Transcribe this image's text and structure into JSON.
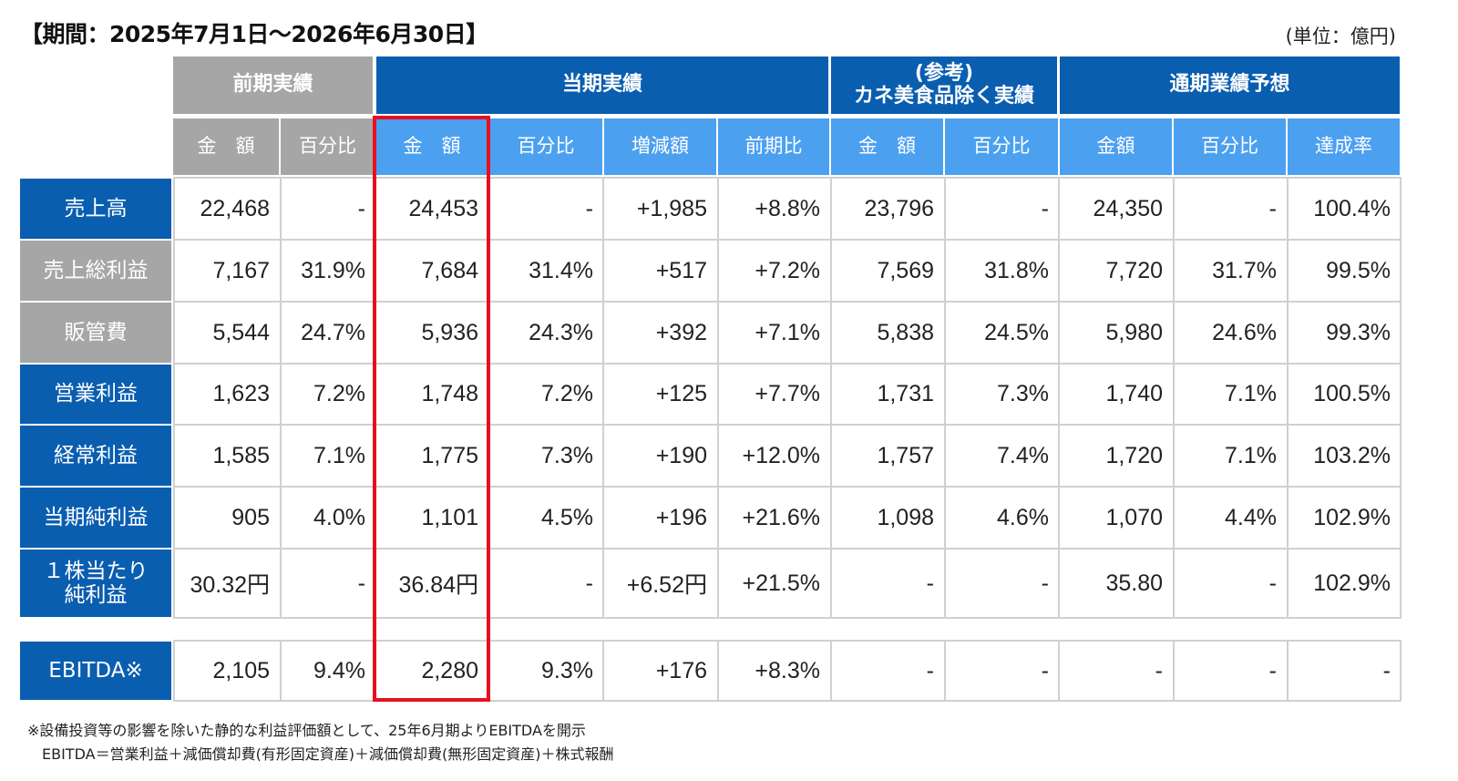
{
  "period_title": "【期間：2025年7月1日〜2026年6月30日】",
  "unit_label": "(単位：億円)",
  "colors": {
    "blue_header": "#0a5eb0",
    "light_blue_header": "#4ca0f0",
    "gray_header": "#a6a6a6",
    "highlight_border": "#e8101e"
  },
  "groups": [
    {
      "label": "前期実績"
    },
    {
      "label": "当期実績"
    },
    {
      "label": "(参考)\nカネ美食品除く実績"
    },
    {
      "label": "通期業績予想"
    }
  ],
  "subheaders": [
    "金　額",
    "百分比",
    "金　額",
    "百分比",
    "増減額",
    "前期比",
    "金　額",
    "百分比",
    "金額",
    "百分比",
    "達成率"
  ],
  "rows": [
    {
      "label": "売上高",
      "values": [
        "22,468",
        "-",
        "24,453",
        "-",
        "+1,985",
        "+8.8%",
        "23,796",
        "-",
        "24,350",
        "-",
        "100.4%"
      ]
    },
    {
      "label": "売上総利益",
      "values": [
        "7,167",
        "31.9%",
        "7,684",
        "31.4%",
        "+517",
        "+7.2%",
        "7,569",
        "31.8%",
        "7,720",
        "31.7%",
        "99.5%"
      ]
    },
    {
      "label": "販管費",
      "values": [
        "5,544",
        "24.7%",
        "5,936",
        "24.3%",
        "+392",
        "+7.1%",
        "5,838",
        "24.5%",
        "5,980",
        "24.6%",
        "99.3%"
      ]
    },
    {
      "label": "営業利益",
      "values": [
        "1,623",
        "7.2%",
        "1,748",
        "7.2%",
        "+125",
        "+7.7%",
        "1,731",
        "7.3%",
        "1,740",
        "7.1%",
        "100.5%"
      ]
    },
    {
      "label": "経常利益",
      "values": [
        "1,585",
        "7.1%",
        "1,775",
        "7.3%",
        "+190",
        "+12.0%",
        "1,757",
        "7.4%",
        "1,720",
        "7.1%",
        "103.2%"
      ]
    },
    {
      "label": "当期純利益",
      "values": [
        "905",
        "4.0%",
        "1,101",
        "4.5%",
        "+196",
        "+21.6%",
        "1,098",
        "4.6%",
        "1,070",
        "4.4%",
        "102.9%"
      ]
    },
    {
      "label": "１株当たり\n純利益",
      "values": [
        "30.32円",
        "-",
        "36.84円",
        "-",
        "+6.52円",
        "+21.5%",
        "-",
        "-",
        "35.80",
        "-",
        "102.9%"
      ]
    }
  ],
  "ebitda_row": {
    "label": "EBITDA※",
    "values": [
      "2,105",
      "9.4%",
      "2,280",
      "9.3%",
      "+176",
      "+8.3%",
      "-",
      "-",
      "-",
      "-",
      "-"
    ]
  },
  "notes": [
    "※設備投資等の影響を除いた静的な利益評価額として、25年6月期よりEBITDAを開示",
    "EBITDA＝営業利益＋減価償却費(有形固定資産)＋減価償却費(無形固定資産)＋株式報酬"
  ]
}
